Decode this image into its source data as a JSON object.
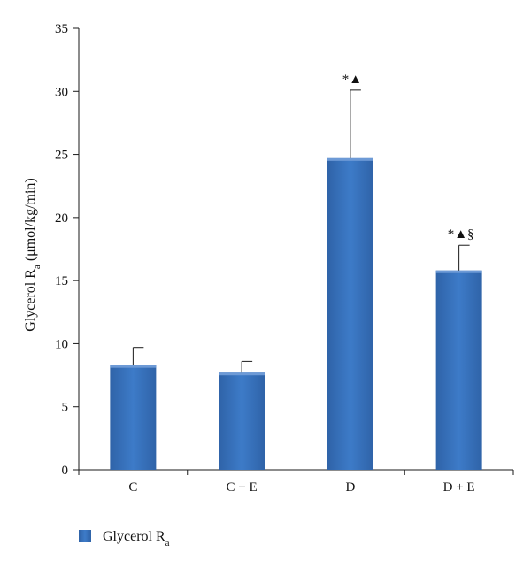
{
  "chart_data": {
    "type": "bar",
    "categories": [
      "C",
      "C + E",
      "D",
      "D + E"
    ],
    "series": [
      {
        "name": "Glycerol R",
        "name_sub": "a",
        "values": [
          8.3,
          7.7,
          24.7,
          15.8
        ],
        "errors": [
          1.4,
          0.9,
          5.4,
          2.0
        ],
        "color": "#3a75c0"
      }
    ],
    "annotations": [
      "",
      "",
      "*▲",
      "*▲§"
    ],
    "ylabel": {
      "main": "Glycerol R",
      "sub": "a",
      "rest": " (μmol/kg/min)"
    },
    "ylim": [
      0,
      35
    ],
    "yticks": [
      0,
      5,
      10,
      15,
      20,
      25,
      30,
      35
    ],
    "legend_position": "bottom-left",
    "grid": false
  }
}
